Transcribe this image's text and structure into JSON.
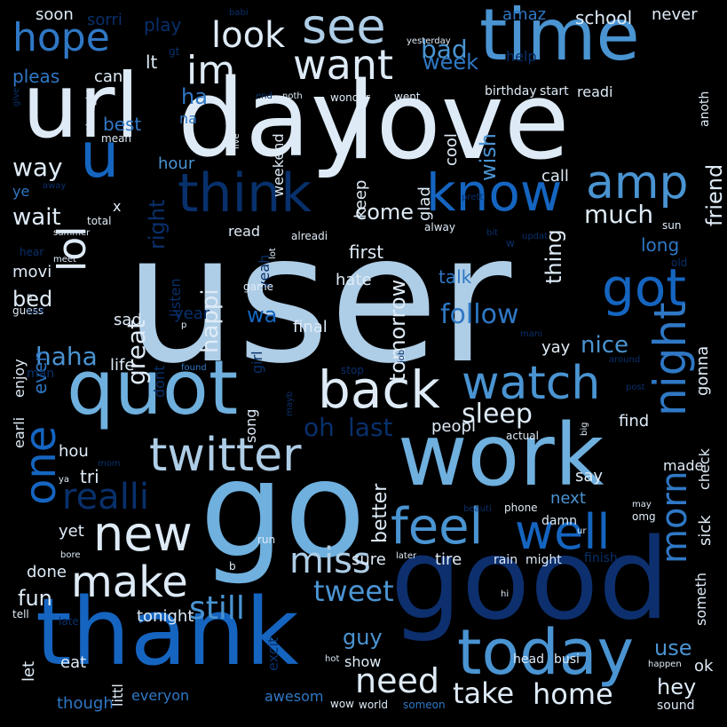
{
  "palette": {
    "c1": "#0d2f6e",
    "c2": "#08306b",
    "c3": "#1565c0",
    "c4": "#2f78c5",
    "c5": "#4a94d2",
    "c6": "#6fb0de",
    "c7": "#aecde6",
    "c8": "#deebf7"
  },
  "words": [
    {
      "text": "user",
      "color": "c7"
    },
    {
      "text": "good",
      "color": "c1"
    },
    {
      "text": "go",
      "color": "c6"
    },
    {
      "text": "day",
      "color": "c8"
    },
    {
      "text": "love",
      "color": "c8"
    },
    {
      "text": "url",
      "color": "c8"
    },
    {
      "text": "time",
      "color": "c5"
    },
    {
      "text": "work",
      "color": "c6"
    },
    {
      "text": "thank",
      "color": "c3"
    },
    {
      "text": "quot",
      "color": "c6"
    },
    {
      "text": "today",
      "color": "c5"
    },
    {
      "text": "u",
      "color": "c3"
    },
    {
      "text": "back",
      "color": "c8"
    },
    {
      "text": "watch",
      "color": "c5"
    },
    {
      "text": "twitter",
      "color": "c7"
    },
    {
      "text": "think",
      "color": "c2"
    },
    {
      "text": "know",
      "color": "c3"
    },
    {
      "text": "feel",
      "color": "c5"
    },
    {
      "text": "well",
      "color": "c3"
    },
    {
      "text": "new",
      "color": "c8"
    },
    {
      "text": "one",
      "color": "c3"
    },
    {
      "text": "make",
      "color": "c8"
    },
    {
      "text": "want",
      "color": "c8"
    },
    {
      "text": "see",
      "color": "c7"
    },
    {
      "text": "hope",
      "color": "c4"
    },
    {
      "text": "look",
      "color": "c8"
    },
    {
      "text": "im",
      "color": "c8"
    },
    {
      "text": "miss",
      "color": "c7"
    },
    {
      "text": "got",
      "color": "c3"
    },
    {
      "text": "night",
      "color": "c4"
    },
    {
      "text": "amp",
      "color": "c5"
    },
    {
      "text": "need",
      "color": "c8"
    },
    {
      "text": "realli",
      "color": "c2"
    },
    {
      "text": "lol",
      "color": "c8"
    },
    {
      "text": "morn",
      "color": "c4"
    },
    {
      "text": "still",
      "color": "c5"
    },
    {
      "text": "home",
      "color": "c8"
    },
    {
      "text": "take",
      "color": "c8"
    },
    {
      "text": "tweet",
      "color": "c5"
    },
    {
      "text": "oh",
      "color": "c2"
    },
    {
      "text": "last",
      "color": "c2"
    },
    {
      "text": "follow",
      "color": "c4"
    },
    {
      "text": "sleep",
      "color": "c8"
    },
    {
      "text": "haha",
      "color": "c5"
    },
    {
      "text": "much",
      "color": "c8"
    },
    {
      "text": "great",
      "color": "c8"
    },
    {
      "text": "happi",
      "color": "c8"
    },
    {
      "text": "tomorrow",
      "color": "c8"
    },
    {
      "text": "better",
      "color": "c8"
    },
    {
      "text": "wait",
      "color": "c8"
    },
    {
      "text": "come",
      "color": "c8"
    },
    {
      "text": "right",
      "color": "c2"
    },
    {
      "text": "way",
      "color": "c8"
    },
    {
      "text": "nice",
      "color": "c5"
    },
    {
      "text": "bad",
      "color": "c5"
    },
    {
      "text": "week",
      "color": "c4"
    },
    {
      "text": "wish",
      "color": "c5"
    },
    {
      "text": "friend",
      "color": "c8"
    },
    {
      "text": "hey",
      "color": "c8"
    },
    {
      "text": "use",
      "color": "c5"
    },
    {
      "text": "guy",
      "color": "c5"
    },
    {
      "text": "fun",
      "color": "c8"
    },
    {
      "text": "bed",
      "color": "c8"
    },
    {
      "text": "wa",
      "color": "c3"
    },
    {
      "text": "ha",
      "color": "c4"
    },
    {
      "text": "thing",
      "color": "c8"
    },
    {
      "text": "school",
      "color": "c8"
    },
    {
      "text": "never",
      "color": "c8"
    },
    {
      "text": "amaz",
      "color": "c4"
    },
    {
      "text": "sorri",
      "color": "c2"
    },
    {
      "text": "play",
      "color": "c2"
    },
    {
      "text": "soon",
      "color": "c8"
    },
    {
      "text": "pleas",
      "color": "c4"
    },
    {
      "text": "cant",
      "color": "c8"
    },
    {
      "text": "lt",
      "color": "c8"
    },
    {
      "text": "help",
      "color": "c2"
    },
    {
      "text": "weekend",
      "color": "c8"
    },
    {
      "text": "best",
      "color": "c4"
    },
    {
      "text": "cool",
      "color": "c8"
    },
    {
      "text": "glad",
      "color": "c8"
    },
    {
      "text": "keep",
      "color": "c8"
    },
    {
      "text": "call",
      "color": "c8"
    },
    {
      "text": "first",
      "color": "c8"
    },
    {
      "text": "sad",
      "color": "c8"
    },
    {
      "text": "movi",
      "color": "c8"
    },
    {
      "text": "hour",
      "color": "c5"
    },
    {
      "text": "long",
      "color": "c4"
    },
    {
      "text": "talk",
      "color": "c4"
    },
    {
      "text": "hate",
      "color": "c8"
    },
    {
      "text": "final",
      "color": "c8"
    },
    {
      "text": "year",
      "color": "c2"
    },
    {
      "text": "life",
      "color": "c8"
    },
    {
      "text": "yay",
      "color": "c8"
    },
    {
      "text": "gonna",
      "color": "c8"
    },
    {
      "text": "peopl",
      "color": "c8"
    },
    {
      "text": "find",
      "color": "c8"
    },
    {
      "text": "check",
      "color": "c8"
    },
    {
      "text": "sick",
      "color": "c8"
    },
    {
      "text": "someth",
      "color": "c8"
    },
    {
      "text": "made",
      "color": "c8"
    },
    {
      "text": "say",
      "color": "c8"
    },
    {
      "text": "next",
      "color": "c5"
    },
    {
      "text": "tri",
      "color": "c8"
    },
    {
      "text": "hou",
      "color": "c8"
    },
    {
      "text": "even",
      "color": "c4"
    },
    {
      "text": "earli",
      "color": "c8"
    },
    {
      "text": "enjoy",
      "color": "c8"
    },
    {
      "text": "song",
      "color": "c8"
    },
    {
      "text": "girl",
      "color": "c2"
    },
    {
      "text": "dont",
      "color": "c2"
    },
    {
      "text": "listen",
      "color": "c2"
    },
    {
      "text": "yeah",
      "color": "c2"
    },
    {
      "text": "read",
      "color": "c8"
    },
    {
      "text": "yet",
      "color": "c8"
    },
    {
      "text": "done",
      "color": "c8"
    },
    {
      "text": "sure",
      "color": "c8"
    },
    {
      "text": "tire",
      "color": "c8"
    },
    {
      "text": "rain",
      "color": "c8"
    },
    {
      "text": "might",
      "color": "c8"
    },
    {
      "text": "finish",
      "color": "c2"
    },
    {
      "text": "tonight",
      "color": "c8"
    },
    {
      "text": "let",
      "color": "c8"
    },
    {
      "text": "eat",
      "color": "c8"
    },
    {
      "text": "littl",
      "color": "c8"
    },
    {
      "text": "though",
      "color": "c4"
    },
    {
      "text": "everyon",
      "color": "c4"
    },
    {
      "text": "awesom",
      "color": "c4"
    },
    {
      "text": "excit",
      "color": "c2"
    },
    {
      "text": "show",
      "color": "c8"
    },
    {
      "text": "ok",
      "color": "c8"
    },
    {
      "text": "head",
      "color": "c8"
    },
    {
      "text": "busi",
      "color": "c8"
    },
    {
      "text": "phone",
      "color": "c8"
    },
    {
      "text": "damn",
      "color": "c8"
    },
    {
      "text": "omg",
      "color": "c8"
    },
    {
      "text": "may",
      "color": "c8"
    },
    {
      "text": "birthday",
      "color": "c8"
    },
    {
      "text": "start",
      "color": "c8"
    },
    {
      "text": "readi",
      "color": "c8"
    },
    {
      "text": "anoth",
      "color": "c8"
    },
    {
      "text": "thought",
      "color": "c8"
    },
    {
      "text": "mean",
      "color": "c8"
    },
    {
      "text": "yesterday",
      "color": "c8"
    },
    {
      "text": "went",
      "color": "c8"
    },
    {
      "text": "wonder",
      "color": "c8"
    },
    {
      "text": "noth",
      "color": "c8"
    },
    {
      "text": "end",
      "color": "c2"
    },
    {
      "text": "live",
      "color": "c8"
    },
    {
      "text": "pretti",
      "color": "c2"
    },
    {
      "text": "sun",
      "color": "c8"
    },
    {
      "text": "alway",
      "color": "c8"
    },
    {
      "text": "bit",
      "color": "c2"
    },
    {
      "text": "updat",
      "color": "c2"
    },
    {
      "text": "alreadi",
      "color": "c8"
    },
    {
      "text": "total",
      "color": "c8"
    },
    {
      "text": "summer",
      "color": "c8"
    },
    {
      "text": "hear",
      "color": "c2"
    },
    {
      "text": "meet",
      "color": "c8"
    },
    {
      "text": "guess",
      "color": "c8"
    },
    {
      "text": "game",
      "color": "c8"
    },
    {
      "text": "found",
      "color": "c4"
    },
    {
      "text": "stop",
      "color": "c2"
    },
    {
      "text": "job",
      "color": "c2"
    },
    {
      "text": "post",
      "color": "c2"
    },
    {
      "text": "around",
      "color": "c2"
    },
    {
      "text": "actual",
      "color": "c8"
    },
    {
      "text": "big",
      "color": "c8"
    },
    {
      "text": "man",
      "color": "c2"
    },
    {
      "text": "run",
      "color": "c8"
    },
    {
      "text": "bore",
      "color": "c8"
    },
    {
      "text": "later",
      "color": "c8"
    },
    {
      "text": "hi",
      "color": "c8"
    },
    {
      "text": "late",
      "color": "c2"
    },
    {
      "text": "tell",
      "color": "c8"
    },
    {
      "text": "hot",
      "color": "c8"
    },
    {
      "text": "wow",
      "color": "c8"
    },
    {
      "text": "world",
      "color": "c8"
    },
    {
      "text": "someon",
      "color": "c4"
    },
    {
      "text": "happen",
      "color": "c8"
    },
    {
      "text": "sound",
      "color": "c8"
    },
    {
      "text": "beauti",
      "color": "c2"
    },
    {
      "text": "ur",
      "color": "c8"
    },
    {
      "text": "babi",
      "color": "c2"
    },
    {
      "text": "give",
      "color": "c2"
    },
    {
      "text": "old",
      "color": "c2"
    },
    {
      "text": "lot",
      "color": "c8"
    },
    {
      "text": "mani",
      "color": "c2"
    },
    {
      "text": "luck",
      "color": "c2"
    },
    {
      "text": "mayb",
      "color": "c2"
    },
    {
      "text": "mom",
      "color": "c2"
    },
    {
      "text": "ya",
      "color": "c8"
    },
    {
      "text": "na",
      "color": "c4"
    },
    {
      "text": "x",
      "color": "c8"
    },
    {
      "text": "ye",
      "color": "c4"
    },
    {
      "text": "b",
      "color": "c8"
    },
    {
      "text": "p",
      "color": "c8"
    },
    {
      "text": "w",
      "color": "c2"
    },
    {
      "text": "n",
      "color": "c8"
    },
    {
      "text": "gt",
      "color": "c2"
    },
    {
      "text": "away",
      "color": "c2"
    }
  ]
}
